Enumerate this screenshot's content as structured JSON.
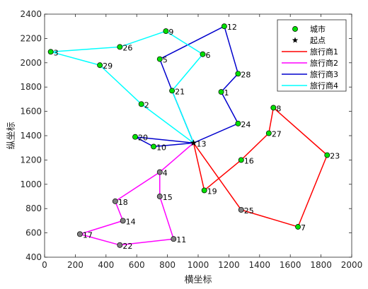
{
  "chart_data": {
    "type": "scatter",
    "title": "",
    "xlabel": "横坐标",
    "ylabel": "纵坐标",
    "xlim": [
      0,
      2000
    ],
    "ylim": [
      400,
      2400
    ],
    "xticks": [
      0,
      200,
      400,
      600,
      800,
      1000,
      1200,
      1400,
      1600,
      1800,
      2000
    ],
    "yticks": [
      400,
      600,
      800,
      1000,
      1200,
      1400,
      1600,
      1800,
      2000,
      2200,
      2400
    ],
    "grid": false,
    "legend_position": "top-right",
    "start": {
      "x": 970,
      "y": 1340,
      "name": "起点"
    },
    "cities": [
      {
        "id": 1,
        "x": 1150,
        "y": 1760
      },
      {
        "id": 2,
        "x": 630,
        "y": 1660
      },
      {
        "id": 3,
        "x": 40,
        "y": 2090
      },
      {
        "id": 4,
        "x": 750,
        "y": 1100
      },
      {
        "id": 5,
        "x": 750,
        "y": 2030
      },
      {
        "id": 6,
        "x": 1030,
        "y": 2070
      },
      {
        "id": 7,
        "x": 1650,
        "y": 650
      },
      {
        "id": 8,
        "x": 1490,
        "y": 1630
      },
      {
        "id": 9,
        "x": 790,
        "y": 2260
      },
      {
        "id": 10,
        "x": 710,
        "y": 1310
      },
      {
        "id": 11,
        "x": 840,
        "y": 550
      },
      {
        "id": 12,
        "x": 1170,
        "y": 2300
      },
      {
        "id": 13,
        "x": 970,
        "y": 1340
      },
      {
        "id": 14,
        "x": 510,
        "y": 700
      },
      {
        "id": 15,
        "x": 750,
        "y": 900
      },
      {
        "id": 16,
        "x": 1280,
        "y": 1200
      },
      {
        "id": 17,
        "x": 230,
        "y": 590
      },
      {
        "id": 18,
        "x": 460,
        "y": 860
      },
      {
        "id": 19,
        "x": 1040,
        "y": 950
      },
      {
        "id": 20,
        "x": 590,
        "y": 1390
      },
      {
        "id": 21,
        "x": 830,
        "y": 1770
      },
      {
        "id": 22,
        "x": 490,
        "y": 500
      },
      {
        "id": 23,
        "x": 1840,
        "y": 1240
      },
      {
        "id": 24,
        "x": 1260,
        "y": 1500
      },
      {
        "id": 25,
        "x": 1280,
        "y": 790
      },
      {
        "id": 26,
        "x": 490,
        "y": 2130
      },
      {
        "id": 27,
        "x": 1460,
        "y": 1420
      },
      {
        "id": 28,
        "x": 1260,
        "y": 1910
      },
      {
        "id": 29,
        "x": 360,
        "y": 1980
      }
    ],
    "series": [
      {
        "name": "旅行商1",
        "color": "#ff0000",
        "route": [
          13,
          19,
          16,
          27,
          8,
          23,
          7,
          25,
          13
        ]
      },
      {
        "name": "旅行商2",
        "color": "#ff00ff",
        "route": [
          13,
          4,
          18,
          14,
          17,
          22,
          11,
          15,
          4,
          13
        ]
      },
      {
        "name": "旅行商3",
        "color": "#0000cd",
        "route": [
          13,
          20,
          10,
          13,
          24,
          1,
          28,
          12,
          5,
          21,
          13
        ]
      },
      {
        "name": "旅行商4",
        "color": "#00ffff",
        "route": [
          13,
          2,
          29,
          3,
          26,
          9,
          6,
          21,
          13
        ]
      }
    ],
    "legend": {
      "city_label": "城市",
      "start_label": "起点"
    },
    "colors": {
      "city_fill": "#00e000",
      "city_fill_alt": "#808080",
      "city_edge": "#000000"
    }
  }
}
